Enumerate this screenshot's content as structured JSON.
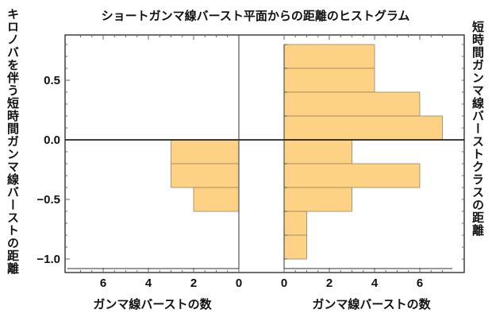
{
  "chart_data": {
    "type": "bar",
    "orientation": "horizontal",
    "title": "ショートガンマ線バースト平面からの距離のヒストグラム",
    "ylabel_left": "キロノバを伴う短時間ガンマ線バーストの距離",
    "ylabel_right": "短時間ガンマ線バーストクラスの距離",
    "ylim": [
      -1.08,
      0.9
    ],
    "yticks": [
      "0.5",
      "0.0",
      "-0.5",
      "-1.0"
    ],
    "ytick_values": [
      0.5,
      0.0,
      -0.5,
      -1.0
    ],
    "bin_edges": [
      0.8,
      0.6,
      0.4,
      0.2,
      0.0,
      -0.2,
      -0.4,
      -0.6,
      -0.8,
      -1.0
    ],
    "bar_color": "#fdd285",
    "panels": [
      {
        "xlabel": "ガンマ線バーストの数",
        "xlim": [
          7.5,
          0
        ],
        "reversed": true,
        "xticks": [
          "6",
          "4",
          "2",
          "0"
        ],
        "xtick_values": [
          6,
          4,
          2,
          0
        ],
        "values": [
          0,
          0,
          0,
          0,
          3,
          3,
          2,
          0,
          0
        ]
      },
      {
        "xlabel": "ガンマ線バーストの数",
        "xlim": [
          0,
          7.5
        ],
        "reversed": false,
        "xticks": [
          "0",
          "2",
          "4",
          "6"
        ],
        "xtick_values": [
          0,
          2,
          4,
          6
        ],
        "values": [
          4,
          4,
          6,
          7,
          3,
          6,
          3,
          1,
          1
        ]
      }
    ]
  }
}
